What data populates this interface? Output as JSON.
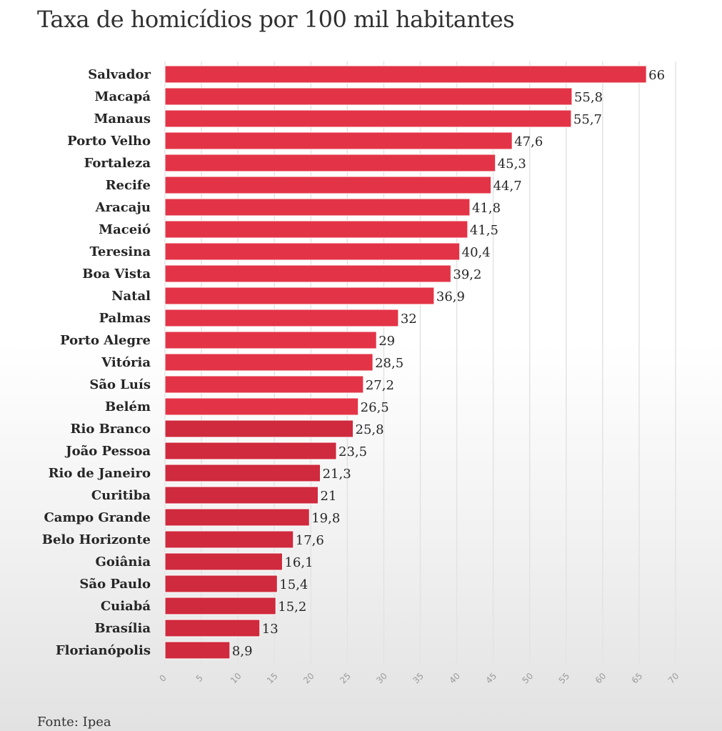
{
  "source": "Fonte: Ipea",
  "colors": {
    "bar": "#e33447",
    "bar_dark": "#cf2a3d",
    "grid": "#e3e3e3",
    "text": "#262626",
    "tick": "#9a9a9a"
  },
  "chart_data": {
    "type": "bar",
    "orientation": "horizontal",
    "title": "Taxa de homicídios por 100 mil habitantes",
    "xlabel": "",
    "ylabel": "",
    "xlim": [
      0,
      70
    ],
    "ticks": [
      "0",
      "5",
      "10",
      "15",
      "20",
      "25",
      "30",
      "35",
      "40",
      "45",
      "50",
      "55",
      "60",
      "65",
      "70"
    ],
    "grid": true,
    "categories": [
      "Salvador",
      "Macapá",
      "Manaus",
      "Porto Velho",
      "Fortaleza",
      "Recife",
      "Aracaju",
      "Maceió",
      "Teresina",
      "Boa Vista",
      "Natal",
      "Palmas",
      "Porto Alegre",
      "Vitória",
      "São Luís",
      "Belém",
      "Rio Branco",
      "João Pessoa",
      "Rio de Janeiro",
      "Curitiba",
      "Campo Grande",
      "Belo Horizonte",
      "Goiânia",
      "São Paulo",
      "Cuiabá",
      "Brasília",
      "Florianópolis"
    ],
    "values": [
      66,
      55.8,
      55.7,
      47.6,
      45.3,
      44.7,
      41.8,
      41.5,
      40.4,
      39.2,
      36.9,
      32,
      29,
      28.5,
      27.2,
      26.5,
      25.8,
      23.5,
      21.3,
      21,
      19.8,
      17.6,
      16.1,
      15.4,
      15.2,
      13,
      8.9
    ],
    "value_labels": [
      "66",
      "55,8",
      "55,7",
      "47,6",
      "45,3",
      "44,7",
      "41,8",
      "41,5",
      "40,4",
      "39,2",
      "36,9",
      "32",
      "29",
      "28,5",
      "27,2",
      "26,5",
      "25,8",
      "23,5",
      "21,3",
      "21",
      "19,8",
      "17,6",
      "16,1",
      "15,4",
      "15,2",
      "13",
      "8,9"
    ]
  }
}
